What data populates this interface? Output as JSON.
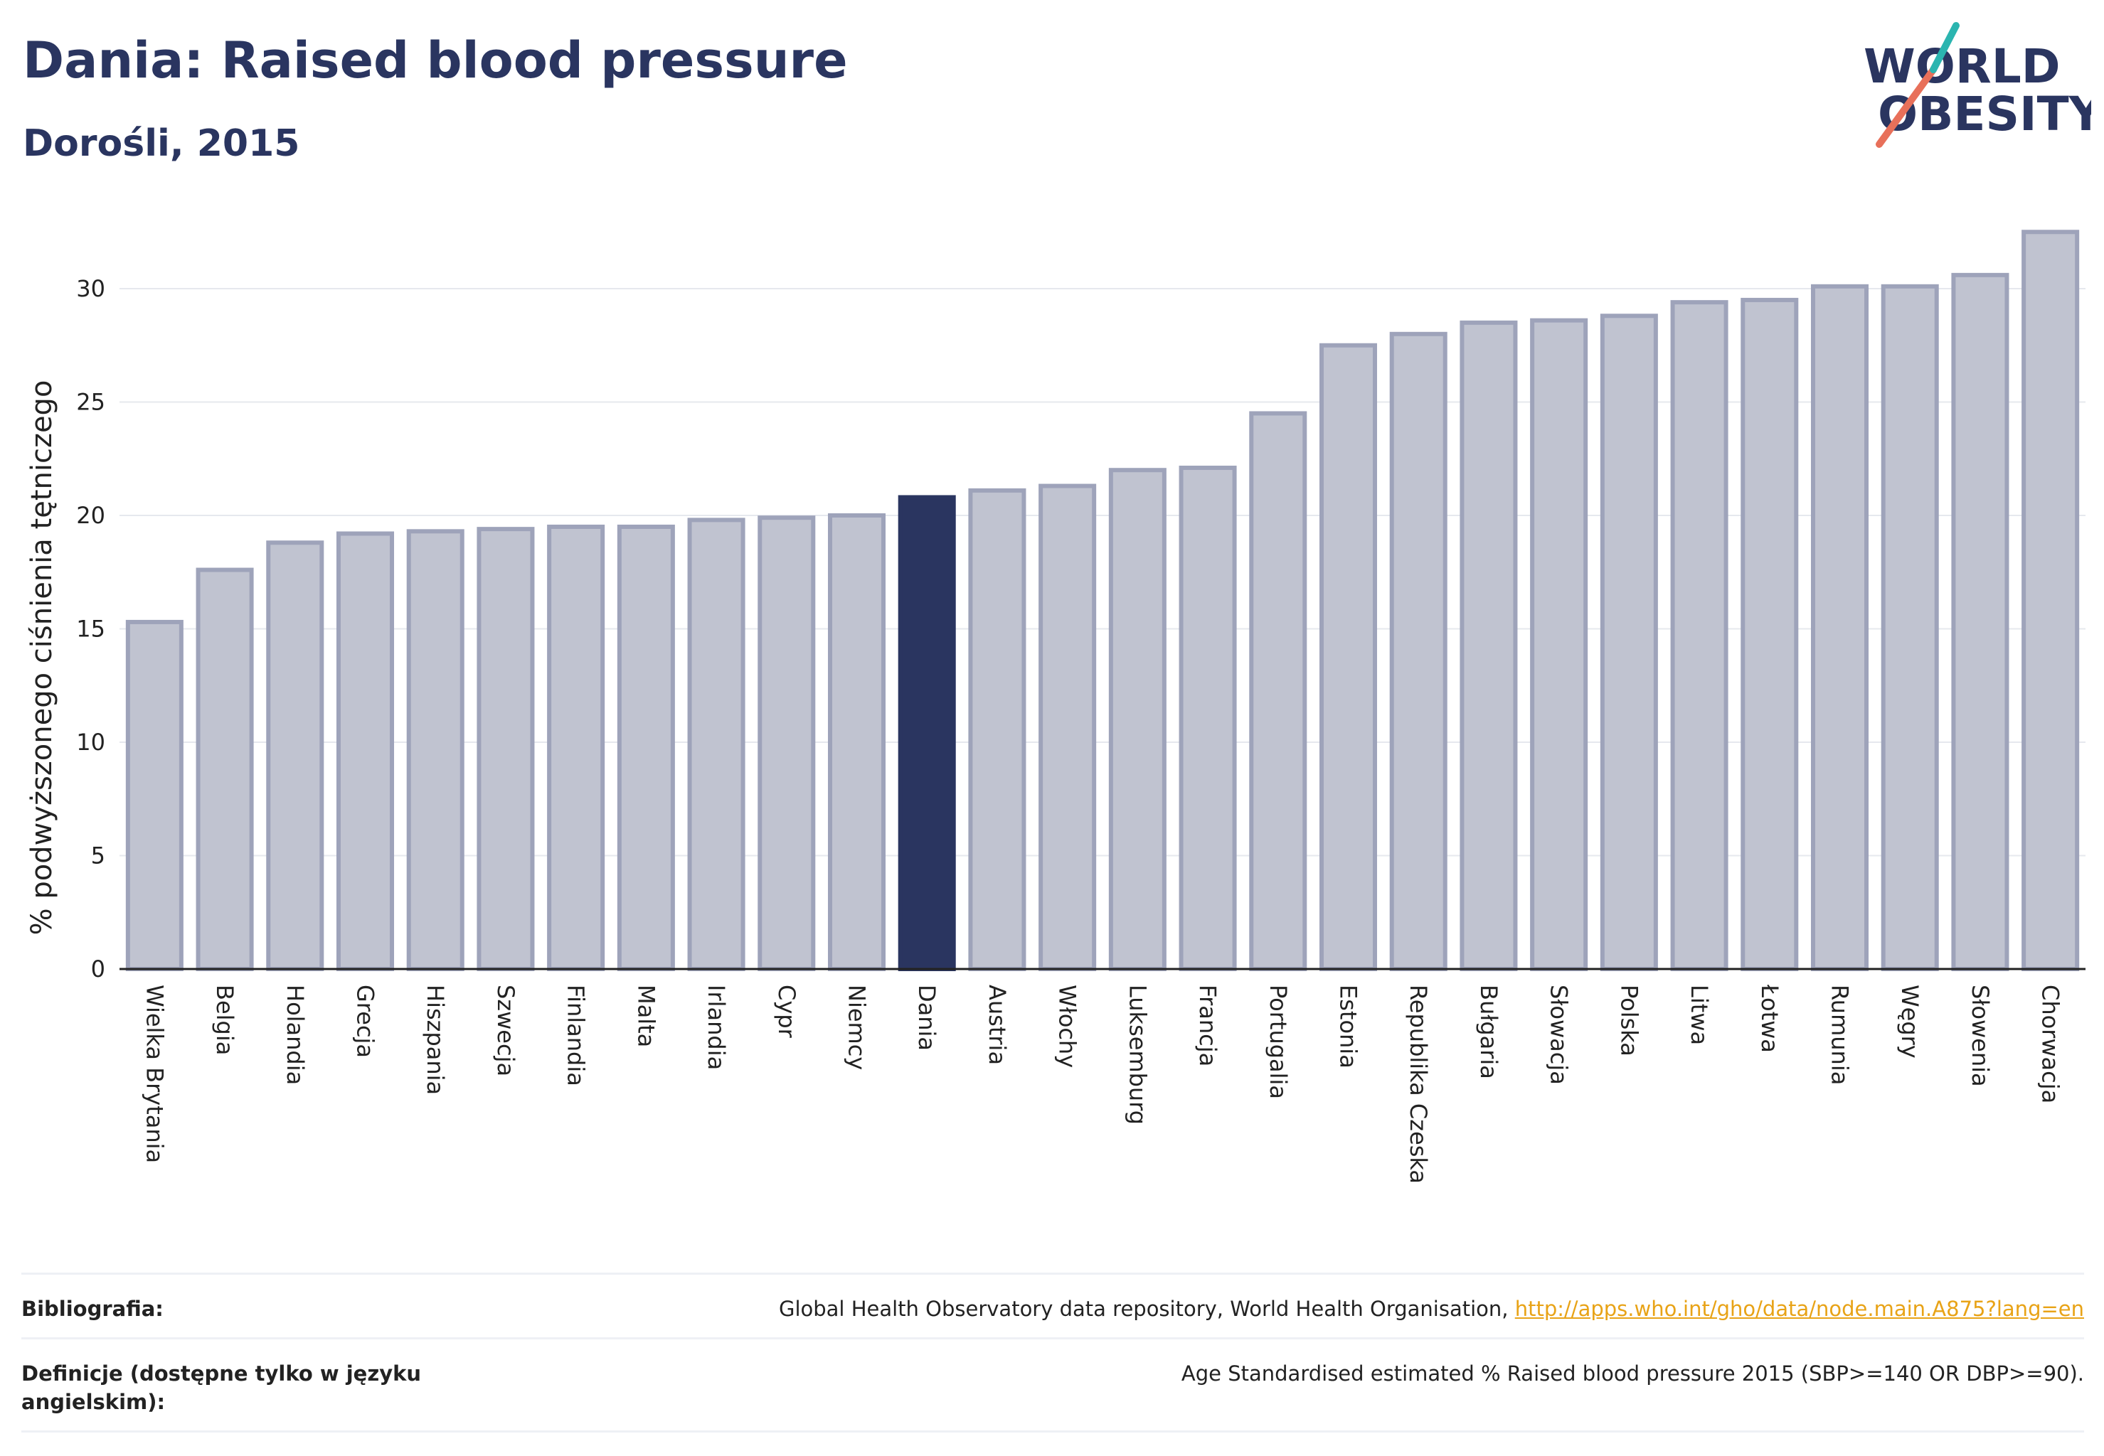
{
  "title": "Dania: Raised blood pressure",
  "subtitle": "Dorośli, 2015",
  "logo": {
    "line1": "WORLD",
    "line2": "OBESITY"
  },
  "chart_data": {
    "type": "bar",
    "ylabel": "% podwyższonego ciśnienia tętniczego",
    "ylim": [
      0,
      33
    ],
    "yticks": [
      0,
      5,
      10,
      15,
      20,
      25,
      30
    ],
    "grid": true,
    "highlight": "Dania",
    "categories": [
      "Wielka Brytania",
      "Belgia",
      "Holandia",
      "Grecja",
      "Hiszpania",
      "Szwecja",
      "Finlandia",
      "Malta",
      "Irlandia",
      "Cypr",
      "Niemcy",
      "Dania",
      "Austria",
      "Włochy",
      "Luksemburg",
      "Francja",
      "Portugalia",
      "Estonia",
      "Republika Czeska",
      "Bułgaria",
      "Słowacja",
      "Polska",
      "Litwa",
      "Łotwa",
      "Rumunia",
      "Węgry",
      "Słowenia",
      "Chorwacja"
    ],
    "values": [
      15.3,
      17.6,
      18.8,
      19.2,
      19.3,
      19.4,
      19.5,
      19.5,
      19.8,
      19.9,
      20.0,
      20.8,
      21.1,
      21.3,
      22.0,
      22.1,
      24.5,
      27.5,
      28.0,
      28.5,
      28.6,
      28.8,
      29.4,
      29.5,
      30.1,
      30.1,
      30.6,
      32.5
    ],
    "colors": {
      "bar": "#c0c3d0",
      "bar_edge": "#9ea3ba",
      "highlight": "#2a3560",
      "axis": "#222222",
      "grid": "#e6e8ee"
    }
  },
  "footer": {
    "bibliography_label": "Bibliografia:",
    "bibliography_text": "Global Health Observatory data repository, World Health Organisation, ",
    "bibliography_link": "http://apps.who.int/gho/data/node.main.A875?lang=en",
    "definition_label": "Definicje (dostępne tylko w języku angielskim):",
    "definition_text": "Age Standardised estimated % Raised blood pressure 2015 (SBP>=140 OR DBP>=90)."
  }
}
